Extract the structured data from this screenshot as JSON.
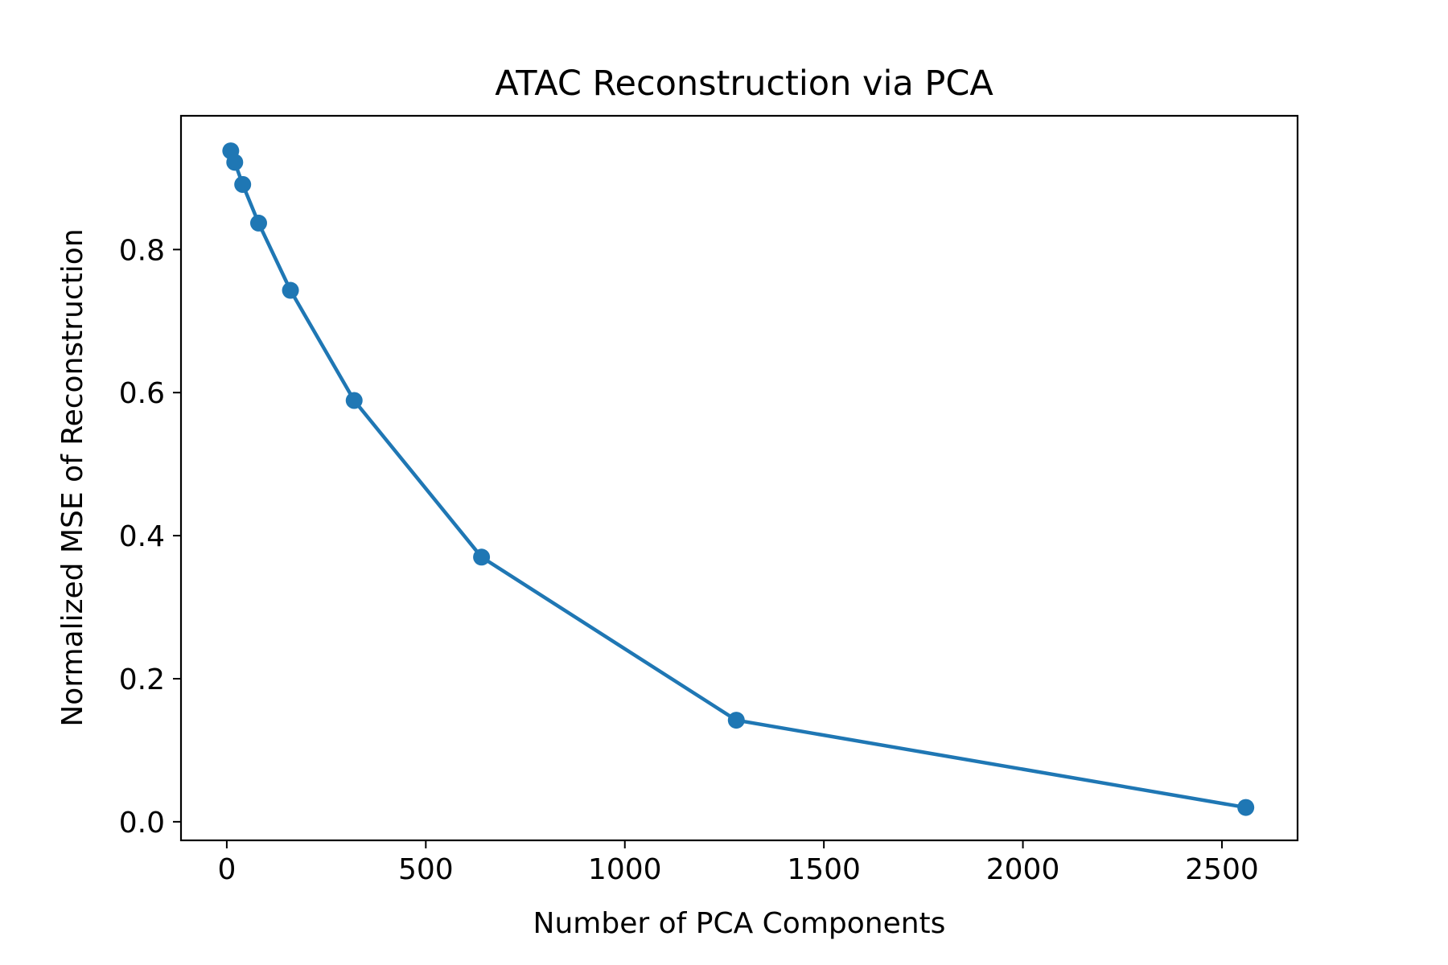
{
  "chart_data": {
    "type": "line",
    "title": "ATAC Reconstruction via PCA",
    "xlabel": "Number of PCA Components",
    "ylabel": "Normalized MSE of Reconstruction",
    "xlim": [
      -115,
      2690
    ],
    "ylim": [
      -0.026,
      0.987
    ],
    "xticks": [
      0,
      500,
      1000,
      1500,
      2000,
      2500
    ],
    "yticks": [
      0.0,
      0.2,
      0.4,
      0.6,
      0.8
    ],
    "xtick_labels": [
      "0",
      "500",
      "1000",
      "1500",
      "2000",
      "2500"
    ],
    "ytick_labels": [
      "0.0",
      "0.2",
      "0.4",
      "0.6",
      "0.8"
    ],
    "grid": false,
    "legend": "none",
    "series": [
      {
        "color": "#1f77b4",
        "marker": "circle",
        "x": [
          10,
          20,
          40,
          80,
          160,
          320,
          640,
          1280,
          2560
        ],
        "y": [
          0.938,
          0.922,
          0.891,
          0.837,
          0.743,
          0.589,
          0.37,
          0.142,
          0.02
        ]
      }
    ]
  }
}
